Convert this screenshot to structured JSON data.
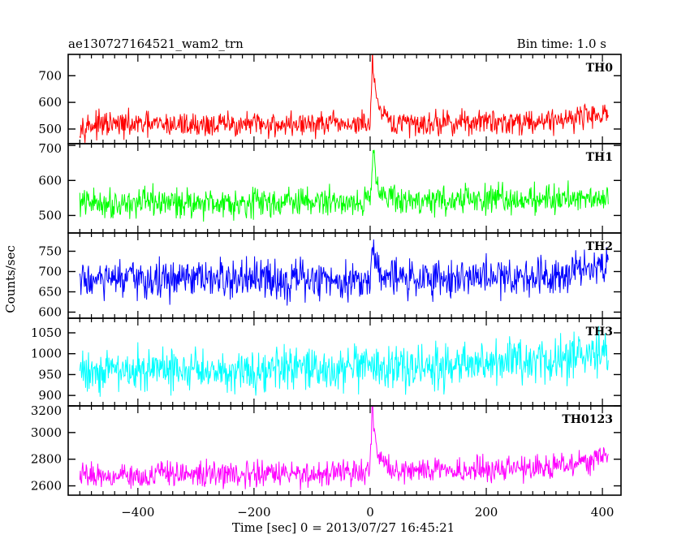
{
  "header": {
    "title": "ae130727164521_wam2_trn",
    "bin_time": "Bin time: 1.0 s"
  },
  "axes": {
    "xlabel": "Time [sec] 0 = 2013/07/27 16:45:21",
    "ylabel": "Counts/sec"
  },
  "chart_data": {
    "type": "line",
    "title": "ae130727164521_wam2_trn",
    "subtitle": "Bin time: 1.0 s",
    "xlabel": "Time [sec] 0 = 2013/07/27 16:45:21",
    "ylabel": "Counts/sec",
    "xlim": [
      -520,
      432
    ],
    "x_ticks": [
      -400,
      -200,
      0,
      200,
      400
    ],
    "x_range_data": [
      -500,
      410
    ],
    "grid": false,
    "legend": "none",
    "panels": [
      {
        "name": "TH0",
        "color": "#ff0000",
        "ylim": [
          445,
          780
        ],
        "yticks": [
          500,
          600,
          700
        ],
        "baseline": [
          [
            -500,
            515
          ],
          [
            0,
            518
          ],
          [
            300,
            530
          ],
          [
            410,
            560
          ]
        ],
        "noise_amplitude": 40,
        "burst": [
          [
            0,
            515
          ],
          [
            2,
            640
          ],
          [
            4,
            760
          ],
          [
            6,
            700
          ],
          [
            10,
            620
          ],
          [
            15,
            570
          ],
          [
            25,
            540
          ],
          [
            40,
            520
          ]
        ]
      },
      {
        "name": "TH1",
        "color": "#00ff00",
        "ylim": [
          450,
          705
        ],
        "yticks": [
          500,
          600,
          700
        ],
        "baseline": [
          [
            -500,
            535
          ],
          [
            0,
            540
          ],
          [
            300,
            548
          ],
          [
            410,
            555
          ]
        ],
        "noise_amplitude": 36,
        "burst": [
          [
            0,
            540
          ],
          [
            3,
            620
          ],
          [
            5,
            700
          ],
          [
            8,
            650
          ],
          [
            14,
            590
          ],
          [
            25,
            560
          ],
          [
            40,
            545
          ]
        ]
      },
      {
        "name": "TH2",
        "color": "#0000ff",
        "ylim": [
          585,
          795
        ],
        "yticks": [
          600,
          650,
          700,
          750
        ],
        "baseline": [
          [
            -500,
            678
          ],
          [
            0,
            680
          ],
          [
            300,
            690
          ],
          [
            410,
            725
          ]
        ],
        "noise_amplitude": 42,
        "burst": [
          [
            0,
            680
          ],
          [
            4,
            760
          ],
          [
            8,
            730
          ],
          [
            20,
            700
          ],
          [
            40,
            690
          ]
        ]
      },
      {
        "name": "TH3",
        "color": "#00ffff",
        "ylim": [
          875,
          1085
        ],
        "yticks": [
          900,
          950,
          1000,
          1050
        ],
        "baseline": [
          [
            -500,
            960
          ],
          [
            0,
            962
          ],
          [
            220,
            975
          ],
          [
            300,
            985
          ],
          [
            410,
            1000
          ]
        ],
        "noise_amplitude": 45,
        "burst": []
      },
      {
        "name": "TH0123",
        "color": "#ff00ff",
        "ylim": [
          2530,
          3200
        ],
        "yticks": [
          2600,
          2800,
          3000,
          3200
        ],
        "baseline": [
          [
            -500,
            2680
          ],
          [
            -100,
            2690
          ],
          [
            0,
            2700
          ],
          [
            300,
            2740
          ],
          [
            410,
            2810
          ]
        ],
        "noise_amplitude": 80,
        "burst": [
          [
            0,
            2700
          ],
          [
            2,
            2950
          ],
          [
            4,
            3200
          ],
          [
            7,
            3000
          ],
          [
            12,
            2860
          ],
          [
            20,
            2780
          ],
          [
            40,
            2720
          ]
        ]
      }
    ]
  }
}
